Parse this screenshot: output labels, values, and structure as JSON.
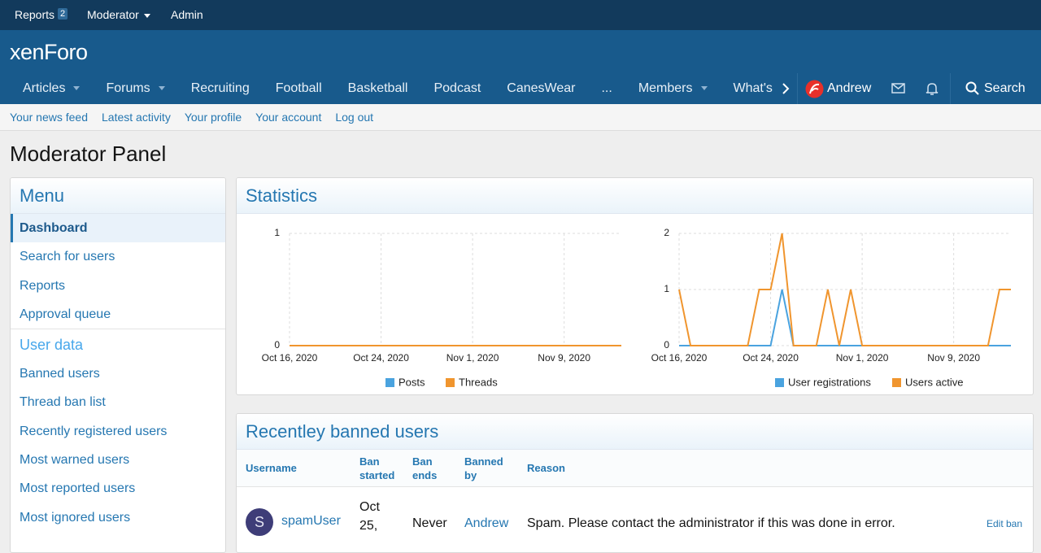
{
  "top_bar": {
    "reports": "Reports",
    "reports_count": 2,
    "moderator": "Moderator",
    "admin": "Admin"
  },
  "logo": "xenForo",
  "nav": {
    "items": [
      {
        "label": "Articles",
        "dropdown": true
      },
      {
        "label": "Forums",
        "dropdown": true
      },
      {
        "label": "Recruiting",
        "dropdown": false
      },
      {
        "label": "Football",
        "dropdown": false
      },
      {
        "label": "Basketball",
        "dropdown": false
      },
      {
        "label": "Podcast",
        "dropdown": false
      },
      {
        "label": "CanesWear",
        "dropdown": false
      },
      {
        "label": "...",
        "dropdown": false
      },
      {
        "label": "Members",
        "dropdown": true
      },
      {
        "label": "What's",
        "dropdown": false
      }
    ],
    "user": "Andrew",
    "search": "Search"
  },
  "subnav": [
    "Your news feed",
    "Latest activity",
    "Your profile",
    "Your account",
    "Log out"
  ],
  "page_title": "Moderator Panel",
  "menu": {
    "title": "Menu",
    "items": [
      "Dashboard",
      "Search for users",
      "Reports",
      "Approval queue"
    ],
    "section": "User data",
    "section_items": [
      "Banned users",
      "Thread ban list",
      "Recently registered users",
      "Most warned users",
      "Most reported users",
      "Most ignored users"
    ]
  },
  "statistics": {
    "title": "Statistics"
  },
  "chart_data": [
    {
      "type": "line",
      "x": [
        "2020-10-16",
        "2020-10-17",
        "2020-10-18",
        "2020-10-19",
        "2020-10-20",
        "2020-10-21",
        "2020-10-22",
        "2020-10-23",
        "2020-10-24",
        "2020-10-25",
        "2020-10-26",
        "2020-10-27",
        "2020-10-28",
        "2020-10-29",
        "2020-10-30",
        "2020-10-31",
        "2020-11-01",
        "2020-11-02",
        "2020-11-03",
        "2020-11-04",
        "2020-11-05",
        "2020-11-06",
        "2020-11-07",
        "2020-11-08",
        "2020-11-09",
        "2020-11-10",
        "2020-11-11",
        "2020-11-12",
        "2020-11-13",
        "2020-11-14"
      ],
      "xlim": [
        "2020-10-16",
        "2020-11-14"
      ],
      "xticks": [
        {
          "value": "2020-10-16",
          "label": "Oct 16, 2020"
        },
        {
          "value": "2020-10-24",
          "label": "Oct 24, 2020"
        },
        {
          "value": "2020-11-01",
          "label": "Nov 1, 2020"
        },
        {
          "value": "2020-11-09",
          "label": "Nov 9, 2020"
        }
      ],
      "ylim": [
        0,
        1
      ],
      "yticks": [
        0,
        1
      ],
      "grid": true,
      "series": [
        {
          "name": "Posts",
          "color": "#4aa3df",
          "values": [
            0,
            0,
            0,
            0,
            0,
            0,
            0,
            0,
            0,
            0,
            0,
            0,
            0,
            0,
            0,
            0,
            0,
            0,
            0,
            0,
            0,
            0,
            0,
            0,
            0,
            0,
            0,
            0,
            0,
            0
          ]
        },
        {
          "name": "Threads",
          "color": "#f0952e",
          "values": [
            0,
            0,
            0,
            0,
            0,
            0,
            0,
            0,
            0,
            0,
            0,
            0,
            0,
            0,
            0,
            0,
            0,
            0,
            0,
            0,
            0,
            0,
            0,
            0,
            0,
            0,
            0,
            0,
            0,
            0
          ]
        }
      ]
    },
    {
      "type": "line",
      "x": [
        "2020-10-16",
        "2020-10-17",
        "2020-10-18",
        "2020-10-19",
        "2020-10-20",
        "2020-10-21",
        "2020-10-22",
        "2020-10-23",
        "2020-10-24",
        "2020-10-25",
        "2020-10-26",
        "2020-10-27",
        "2020-10-28",
        "2020-10-29",
        "2020-10-30",
        "2020-10-31",
        "2020-11-01",
        "2020-11-02",
        "2020-11-03",
        "2020-11-04",
        "2020-11-05",
        "2020-11-06",
        "2020-11-07",
        "2020-11-08",
        "2020-11-09",
        "2020-11-10",
        "2020-11-11",
        "2020-11-12",
        "2020-11-13",
        "2020-11-14"
      ],
      "xlim": [
        "2020-10-16",
        "2020-11-14"
      ],
      "xticks": [
        {
          "value": "2020-10-16",
          "label": "Oct 16, 2020"
        },
        {
          "value": "2020-10-24",
          "label": "Oct 24, 2020"
        },
        {
          "value": "2020-11-01",
          "label": "Nov 1, 2020"
        },
        {
          "value": "2020-11-09",
          "label": "Nov 9, 2020"
        }
      ],
      "ylim": [
        0,
        2
      ],
      "yticks": [
        0,
        1,
        2
      ],
      "grid": true,
      "series": [
        {
          "name": "User registrations",
          "color": "#4aa3df",
          "values": [
            0,
            0,
            0,
            0,
            0,
            0,
            0,
            0,
            0,
            1,
            0,
            0,
            0,
            0,
            0,
            0,
            0,
            0,
            0,
            0,
            0,
            0,
            0,
            0,
            0,
            0,
            0,
            0,
            0,
            0
          ]
        },
        {
          "name": "Users active",
          "color": "#f0952e",
          "values": [
            1,
            0,
            0,
            0,
            0,
            0,
            0,
            1,
            1,
            2,
            0,
            0,
            0,
            1,
            0,
            1,
            0,
            0,
            0,
            0,
            0,
            0,
            0,
            0,
            0,
            0,
            0,
            0,
            1,
            1
          ]
        }
      ]
    }
  ],
  "banned": {
    "title": "Recentley banned users",
    "columns": [
      "Username",
      "Ban started",
      "Ban ends",
      "Banned by",
      "Reason"
    ],
    "rows": [
      {
        "avatar": "S",
        "cells": [
          "spamUser",
          "Oct 25,",
          "Never",
          "Andrew",
          "Spam. Please contact the administrator if this was done in error."
        ],
        "action": "Edit ban"
      }
    ]
  }
}
